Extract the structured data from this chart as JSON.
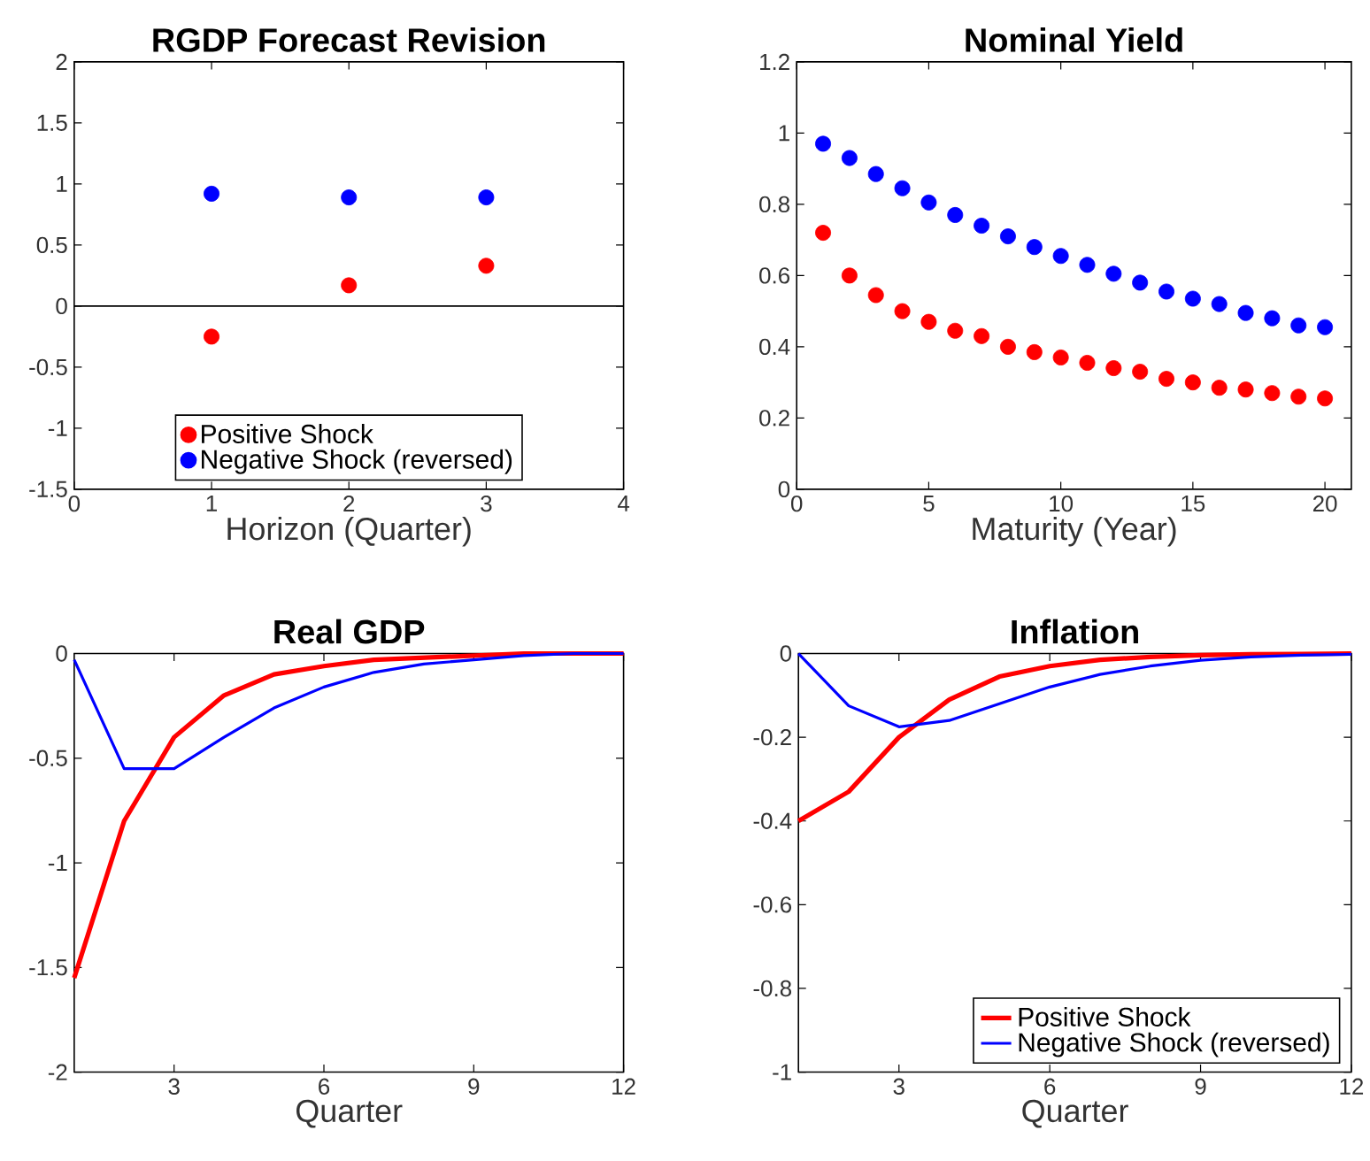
{
  "chart_data": [
    {
      "type": "scatter",
      "title": "RGDP Forecast Revision",
      "xlabel": "Horizon (Quarter)",
      "x": [
        1,
        2,
        3
      ],
      "xlim": [
        0,
        4
      ],
      "xticks": [
        0,
        1,
        2,
        3,
        4
      ],
      "ylim": [
        -1.5,
        2
      ],
      "yticks": [
        -1.5,
        -1,
        -0.5,
        0,
        0.5,
        1,
        1.5,
        2
      ],
      "marker": "circle",
      "legend": "bottom",
      "ref_lines": [
        {
          "axis": "y",
          "value": 0,
          "color": "#000000"
        }
      ],
      "series": [
        {
          "name": "Positive Shock",
          "color": "#ff0000",
          "values": [
            -0.25,
            0.17,
            0.33
          ]
        },
        {
          "name": "Negative Shock (reversed)",
          "color": "#0000ff",
          "values": [
            0.92,
            0.89,
            0.89
          ]
        }
      ]
    },
    {
      "type": "scatter",
      "title": "Nominal Yield",
      "xlabel": "Maturity (Year)",
      "x": [
        1,
        2,
        3,
        4,
        5,
        6,
        7,
        8,
        9,
        10,
        11,
        12,
        13,
        14,
        15,
        16,
        17,
        18,
        19,
        20
      ],
      "xlim": [
        0,
        21
      ],
      "xticks": [
        0,
        5,
        10,
        15,
        20
      ],
      "ylim": [
        0,
        1.2
      ],
      "yticks": [
        0,
        0.2,
        0.4,
        0.6,
        0.8,
        1,
        1.2
      ],
      "marker": "circle",
      "series": [
        {
          "color": "#ff0000",
          "values": [
            0.72,
            0.6,
            0.545,
            0.5,
            0.47,
            0.445,
            0.43,
            0.4,
            0.385,
            0.37,
            0.355,
            0.34,
            0.33,
            0.31,
            0.3,
            0.285,
            0.28,
            0.27,
            0.26,
            0.255
          ]
        },
        {
          "color": "#0000ff",
          "values": [
            0.97,
            0.93,
            0.885,
            0.845,
            0.805,
            0.77,
            0.74,
            0.71,
            0.68,
            0.655,
            0.63,
            0.605,
            0.58,
            0.555,
            0.535,
            0.52,
            0.495,
            0.48,
            0.46,
            0.455
          ]
        }
      ]
    },
    {
      "type": "line",
      "title": "Real GDP",
      "xlabel": "Quarter",
      "x": [
        1,
        2,
        3,
        4,
        5,
        6,
        7,
        8,
        9,
        10,
        11,
        12
      ],
      "xlim": [
        1,
        12
      ],
      "xticks": [
        3,
        6,
        9,
        12
      ],
      "ylim": [
        -2,
        0
      ],
      "yticks": [
        -2,
        -1.5,
        -1,
        -0.5,
        0
      ],
      "series": [
        {
          "color": "#ff0000",
          "values": [
            -1.55,
            -0.8,
            -0.4,
            -0.2,
            -0.1,
            -0.06,
            -0.03,
            -0.02,
            -0.01,
            0,
            0,
            0
          ]
        },
        {
          "color": "#0000ff",
          "values": [
            -0.03,
            -0.55,
            -0.55,
            -0.4,
            -0.26,
            -0.16,
            -0.09,
            -0.05,
            -0.03,
            -0.01,
            0,
            0
          ]
        }
      ]
    },
    {
      "type": "line",
      "title": "Inflation",
      "xlabel": "Quarter",
      "x": [
        1,
        2,
        3,
        4,
        5,
        6,
        7,
        8,
        9,
        10,
        11,
        12
      ],
      "xlim": [
        1,
        12
      ],
      "xticks": [
        3,
        6,
        9,
        12
      ],
      "ylim": [
        -1,
        0
      ],
      "yticks": [
        -1,
        -0.8,
        -0.6,
        -0.4,
        -0.2,
        0
      ],
      "legend": "bottom right",
      "series": [
        {
          "name": "Positive Shock",
          "color": "#ff0000",
          "values": [
            -0.4,
            -0.33,
            -0.2,
            -0.11,
            -0.055,
            -0.03,
            -0.015,
            -0.008,
            -0.004,
            -0.002,
            -0.001,
            0
          ]
        },
        {
          "name": "Negative Shock (reversed)",
          "color": "#0000ff",
          "values": [
            0,
            -0.125,
            -0.175,
            -0.16,
            -0.12,
            -0.08,
            -0.05,
            -0.03,
            -0.016,
            -0.008,
            -0.004,
            -0.002
          ]
        }
      ]
    }
  ]
}
